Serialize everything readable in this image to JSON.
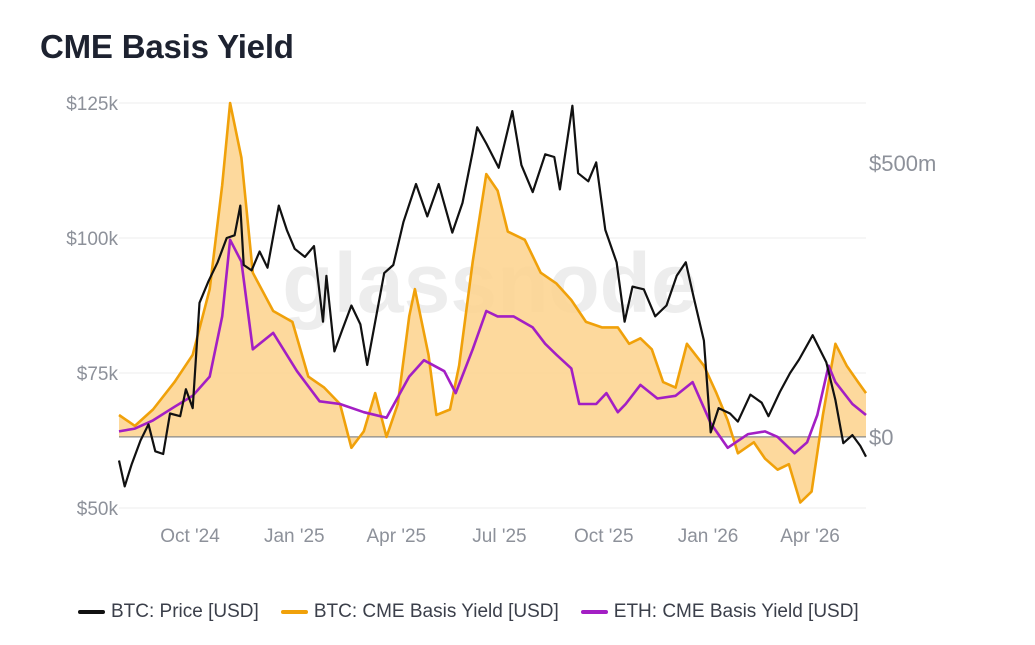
{
  "page": {
    "title": "CME Basis Yield",
    "watermark": "glassnode"
  },
  "colors": {
    "price": "#111111",
    "btc_basis": "#f0a10a",
    "btc_fill": "#fdd28c",
    "eth_basis": "#a31fc4",
    "zero_line": "#8a8a8a",
    "grid": "#ececec"
  },
  "chart_data": {
    "type": "line",
    "title": "CME Basis Yield",
    "x_axis": {
      "ticks": [
        "Oct '24",
        "Jan '25",
        "Apr '25",
        "Jul '25",
        "Oct '25",
        "Jan '26",
        "Apr '26"
      ],
      "range": [
        "2024-09-01",
        "2026-06-22"
      ]
    },
    "y_left": {
      "label": "BTC: Price [USD]",
      "range": [
        50000,
        125000
      ],
      "ticks": [
        50000,
        75000,
        100000,
        125000
      ],
      "tick_labels": [
        "$50k",
        "$75k",
        "$100k",
        "$125k"
      ]
    },
    "y_right": {
      "label": "CME Basis Yield [USD]",
      "range": [
        -130,
        610
      ],
      "ticks": [
        0,
        500
      ],
      "tick_labels": [
        "$0",
        "$500m"
      ]
    },
    "grid": true,
    "legend_placement": "bottom",
    "series": [
      {
        "name": "BTC: Price [USD]",
        "axis": "left",
        "style": "line",
        "points": [
          [
            "2024-09-01",
            58800
          ],
          [
            "2024-09-06",
            54000
          ],
          [
            "2024-09-12",
            58000
          ],
          [
            "2024-09-20",
            62500
          ],
          [
            "2024-09-27",
            65500
          ],
          [
            "2024-10-03",
            60500
          ],
          [
            "2024-10-10",
            60000
          ],
          [
            "2024-10-16",
            67500
          ],
          [
            "2024-10-25",
            67000
          ],
          [
            "2024-10-30",
            72000
          ],
          [
            "2024-11-05",
            68500
          ],
          [
            "2024-11-11",
            88000
          ],
          [
            "2024-11-19",
            92000
          ],
          [
            "2024-11-27",
            95500
          ],
          [
            "2024-12-05",
            100000
          ],
          [
            "2024-12-12",
            100500
          ],
          [
            "2024-12-17",
            106000
          ],
          [
            "2024-12-20",
            95000
          ],
          [
            "2024-12-27",
            94000
          ],
          [
            "2025-01-03",
            97500
          ],
          [
            "2025-01-10",
            94500
          ],
          [
            "2025-01-20",
            106000
          ],
          [
            "2025-01-27",
            101500
          ],
          [
            "2025-02-03",
            98000
          ],
          [
            "2025-02-12",
            96500
          ],
          [
            "2025-02-20",
            98500
          ],
          [
            "2025-02-28",
            84500
          ],
          [
            "2025-03-03",
            93000
          ],
          [
            "2025-03-10",
            79000
          ],
          [
            "2025-03-17",
            83000
          ],
          [
            "2025-03-25",
            87500
          ],
          [
            "2025-04-02",
            84000
          ],
          [
            "2025-04-08",
            76500
          ],
          [
            "2025-04-15",
            84500
          ],
          [
            "2025-04-23",
            93500
          ],
          [
            "2025-05-01",
            95000
          ],
          [
            "2025-05-10",
            103000
          ],
          [
            "2025-05-21",
            110000
          ],
          [
            "2025-05-31",
            104000
          ],
          [
            "2025-06-10",
            110000
          ],
          [
            "2025-06-22",
            101000
          ],
          [
            "2025-07-01",
            106500
          ],
          [
            "2025-07-10",
            116000
          ],
          [
            "2025-07-14",
            120500
          ],
          [
            "2025-07-22",
            117500
          ],
          [
            "2025-08-02",
            113000
          ],
          [
            "2025-08-14",
            123500
          ],
          [
            "2025-08-22",
            113500
          ],
          [
            "2025-09-01",
            108500
          ],
          [
            "2025-09-12",
            115500
          ],
          [
            "2025-09-20",
            115000
          ],
          [
            "2025-09-25",
            109000
          ],
          [
            "2025-10-06",
            124500
          ],
          [
            "2025-10-11",
            112000
          ],
          [
            "2025-10-20",
            110500
          ],
          [
            "2025-10-27",
            114000
          ],
          [
            "2025-11-04",
            101500
          ],
          [
            "2025-11-14",
            95500
          ],
          [
            "2025-11-21",
            84500
          ],
          [
            "2025-11-28",
            91000
          ],
          [
            "2025-12-08",
            90500
          ],
          [
            "2025-12-18",
            85500
          ],
          [
            "2025-12-28",
            87500
          ],
          [
            "2026-01-06",
            93000
          ],
          [
            "2026-01-14",
            95500
          ],
          [
            "2026-01-21",
            89000
          ],
          [
            "2026-01-30",
            81000
          ],
          [
            "2026-02-05",
            64000
          ],
          [
            "2026-02-12",
            68500
          ],
          [
            "2026-02-22",
            67500
          ],
          [
            "2026-03-01",
            66000
          ],
          [
            "2026-03-12",
            71000
          ],
          [
            "2026-03-22",
            69500
          ],
          [
            "2026-03-28",
            67000
          ],
          [
            "2026-04-07",
            71500
          ],
          [
            "2026-04-16",
            75000
          ],
          [
            "2026-04-24",
            77500
          ],
          [
            "2026-05-06",
            82000
          ],
          [
            "2026-05-18",
            77000
          ],
          [
            "2026-05-26",
            70000
          ],
          [
            "2026-06-02",
            62000
          ],
          [
            "2026-06-10",
            63500
          ],
          [
            "2026-06-17",
            61500
          ],
          [
            "2026-06-22",
            59500
          ]
        ]
      },
      {
        "name": "BTC: CME Basis Yield [USD]",
        "axis": "right",
        "style": "area",
        "points": [
          [
            "2024-09-01",
            40
          ],
          [
            "2024-09-15",
            20
          ],
          [
            "2024-10-01",
            50
          ],
          [
            "2024-10-20",
            100
          ],
          [
            "2024-11-05",
            150
          ],
          [
            "2024-11-20",
            270
          ],
          [
            "2024-12-01",
            460
          ],
          [
            "2024-12-08",
            610
          ],
          [
            "2024-12-18",
            510
          ],
          [
            "2024-12-28",
            300
          ],
          [
            "2025-01-15",
            230
          ],
          [
            "2025-02-01",
            210
          ],
          [
            "2025-02-15",
            110
          ],
          [
            "2025-03-01",
            90
          ],
          [
            "2025-03-15",
            60
          ],
          [
            "2025-03-25",
            -20
          ],
          [
            "2025-04-05",
            10
          ],
          [
            "2025-04-15",
            80
          ],
          [
            "2025-04-25",
            0
          ],
          [
            "2025-05-05",
            60
          ],
          [
            "2025-05-15",
            220
          ],
          [
            "2025-05-20",
            270
          ],
          [
            "2025-06-01",
            150
          ],
          [
            "2025-06-08",
            40
          ],
          [
            "2025-06-20",
            50
          ],
          [
            "2025-06-28",
            130
          ],
          [
            "2025-07-10",
            320
          ],
          [
            "2025-07-22",
            480
          ],
          [
            "2025-08-01",
            450
          ],
          [
            "2025-08-10",
            375
          ],
          [
            "2025-08-25",
            360
          ],
          [
            "2025-09-08",
            300
          ],
          [
            "2025-09-22",
            280
          ],
          [
            "2025-10-05",
            250
          ],
          [
            "2025-10-18",
            210
          ],
          [
            "2025-11-01",
            200
          ],
          [
            "2025-11-15",
            200
          ],
          [
            "2025-11-25",
            170
          ],
          [
            "2025-12-05",
            180
          ],
          [
            "2025-12-15",
            160
          ],
          [
            "2025-12-25",
            100
          ],
          [
            "2026-01-05",
            90
          ],
          [
            "2026-01-15",
            170
          ],
          [
            "2026-01-30",
            130
          ],
          [
            "2026-02-10",
            80
          ],
          [
            "2026-02-20",
            30
          ],
          [
            "2026-03-01",
            -30
          ],
          [
            "2026-03-15",
            -10
          ],
          [
            "2026-03-25",
            -40
          ],
          [
            "2026-04-05",
            -60
          ],
          [
            "2026-04-15",
            -50
          ],
          [
            "2026-04-25",
            -120
          ],
          [
            "2026-05-05",
            -100
          ],
          [
            "2026-05-15",
            40
          ],
          [
            "2026-05-26",
            170
          ],
          [
            "2026-06-05",
            130
          ],
          [
            "2026-06-15",
            100
          ],
          [
            "2026-06-22",
            80
          ]
        ]
      },
      {
        "name": "ETH: CME Basis Yield [USD]",
        "axis": "right",
        "style": "line",
        "points": [
          [
            "2024-09-01",
            10
          ],
          [
            "2024-09-15",
            15
          ],
          [
            "2024-10-01",
            30
          ],
          [
            "2024-10-20",
            55
          ],
          [
            "2024-11-05",
            75
          ],
          [
            "2024-11-20",
            110
          ],
          [
            "2024-12-01",
            220
          ],
          [
            "2024-12-08",
            360
          ],
          [
            "2024-12-18",
            320
          ],
          [
            "2024-12-28",
            160
          ],
          [
            "2025-01-15",
            190
          ],
          [
            "2025-02-05",
            120
          ],
          [
            "2025-02-25",
            65
          ],
          [
            "2025-03-15",
            60
          ],
          [
            "2025-04-05",
            45
          ],
          [
            "2025-04-25",
            35
          ],
          [
            "2025-05-15",
            110
          ],
          [
            "2025-05-28",
            140
          ],
          [
            "2025-06-15",
            120
          ],
          [
            "2025-06-25",
            80
          ],
          [
            "2025-07-10",
            160
          ],
          [
            "2025-07-22",
            230
          ],
          [
            "2025-08-01",
            220
          ],
          [
            "2025-08-15",
            220
          ],
          [
            "2025-09-01",
            200
          ],
          [
            "2025-09-12",
            170
          ],
          [
            "2025-09-22",
            150
          ],
          [
            "2025-10-05",
            125
          ],
          [
            "2025-10-12",
            60
          ],
          [
            "2025-10-27",
            60
          ],
          [
            "2025-11-05",
            80
          ],
          [
            "2025-11-15",
            45
          ],
          [
            "2025-11-22",
            60
          ],
          [
            "2025-12-05",
            95
          ],
          [
            "2025-12-20",
            70
          ],
          [
            "2026-01-05",
            75
          ],
          [
            "2026-01-20",
            100
          ],
          [
            "2026-02-05",
            25
          ],
          [
            "2026-02-20",
            -20
          ],
          [
            "2026-03-10",
            5
          ],
          [
            "2026-03-25",
            10
          ],
          [
            "2026-04-05",
            0
          ],
          [
            "2026-04-20",
            -30
          ],
          [
            "2026-05-01",
            -10
          ],
          [
            "2026-05-10",
            40
          ],
          [
            "2026-05-20",
            130
          ],
          [
            "2026-05-26",
            100
          ],
          [
            "2026-06-10",
            60
          ],
          [
            "2026-06-22",
            40
          ]
        ]
      }
    ]
  },
  "legend": {
    "items": [
      {
        "label": "BTC: Price [USD]",
        "color": "#111111"
      },
      {
        "label": "BTC: CME Basis Yield [USD]",
        "color": "#f0a10a"
      },
      {
        "label": "ETH: CME Basis Yield [USD]",
        "color": "#a31fc4"
      }
    ]
  }
}
